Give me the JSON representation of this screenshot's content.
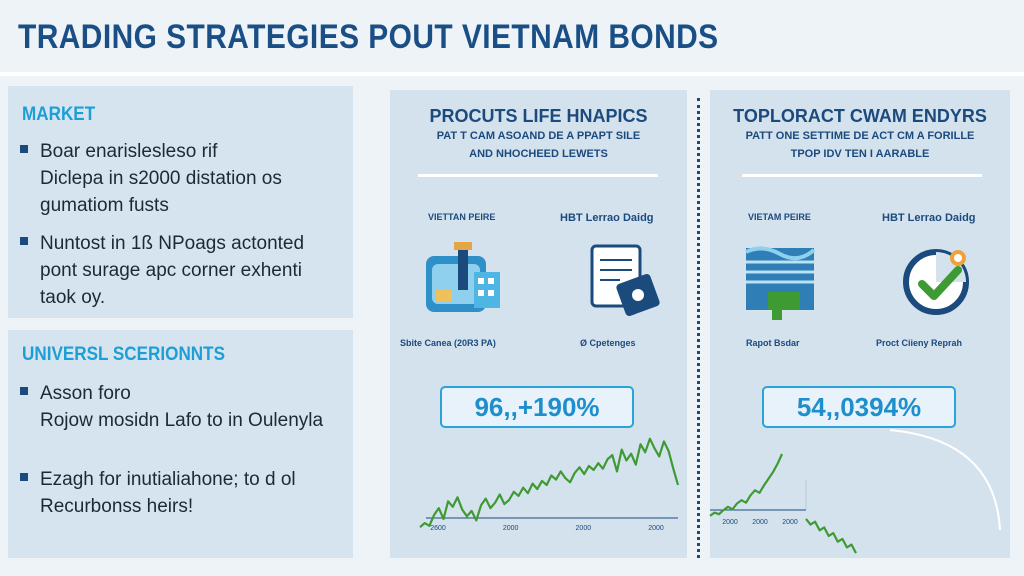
{
  "header": {
    "title": "TRADING STRATEGIES POUT VIETNAM BONDS"
  },
  "left": {
    "market": {
      "heading": "MARKET",
      "bullets": [
        "Boar enarislesleso rif\nDiclepa in s2000 distation os\ngumatiom fusts",
        "Nuntost in 1ß NPoags actonted\npont surage apc corner exhenti\ntaok oy."
      ]
    },
    "universal": {
      "heading": "UNIVERSL SCERIONNTS",
      "bullets": [
        "Asson foro\nRojow mosidn Lafo to in Oulenyla",
        "Ezagh for inutialiahone; to d ol\nRecurbonss heirs!"
      ]
    }
  },
  "cards": [
    {
      "title": "PROCUTS LIFE HNAPICS",
      "subtitle_line1": "PAT T CAM ASOAND DE A PPAPT SILE",
      "subtitle_line2": "AND NHOCHEED LEWETS",
      "icon1_top": "VIETTAN PEIRE",
      "icon1_bottom": "Sbite Canea (20R3 PA)",
      "icon2_top": "HBT Lerrao Daidg",
      "icon2_bottom": "Ø Cpetenges",
      "value": "96,,+190%"
    },
    {
      "title": "TOPLORACT CWAM ENDYRS",
      "subtitle_line1": "PATT ONE SETTIME DE ACT CM A FORILLE",
      "subtitle_line2": "TPOP IDV TEN I AARABLE",
      "icon1_top": "VIETAM PEIRE",
      "icon1_bottom": "Rapot Bsdar",
      "icon2_top": "HBT Lerrao Daidg",
      "icon2_bottom": "Proct Ciieny Reprah",
      "value": "54,,0394%"
    }
  ],
  "chart_data": [
    {
      "type": "line",
      "x_tick_labels": [
        "2600",
        "2000",
        "2000",
        "2000"
      ],
      "y": [
        5,
        8,
        6,
        14,
        19,
        11,
        24,
        20,
        27,
        18,
        13,
        17,
        10,
        21,
        26,
        19,
        23,
        29,
        22,
        25,
        31,
        28,
        34,
        30,
        37,
        33,
        39,
        36,
        43,
        40,
        46,
        41,
        38,
        45,
        49,
        44,
        50,
        47,
        52,
        48,
        55,
        58,
        46,
        62,
        54,
        59,
        51,
        66,
        60,
        70,
        63,
        57,
        68,
        61,
        48,
        36
      ],
      "color": "#3e9a32"
    },
    {
      "type": "line",
      "x_tick_labels": [
        "2000",
        "2000",
        "2000"
      ],
      "series": [
        {
          "y": [
            5,
            9,
            7,
            12,
            16,
            13,
            20,
            24,
            21,
            30,
            36,
            33,
            42,
            50,
            58,
            68,
            80
          ]
        },
        {
          "y": [
            26,
            22,
            24,
            18,
            20,
            14,
            16,
            10,
            12,
            6,
            8,
            2
          ]
        }
      ],
      "color": "#3e9a32"
    }
  ],
  "colors": {
    "title": "#1a4f86",
    "accent": "#1e9ed6",
    "panel": "#d6e4ef",
    "line": "#3e9a32",
    "pill_border": "#2aa3d8"
  }
}
